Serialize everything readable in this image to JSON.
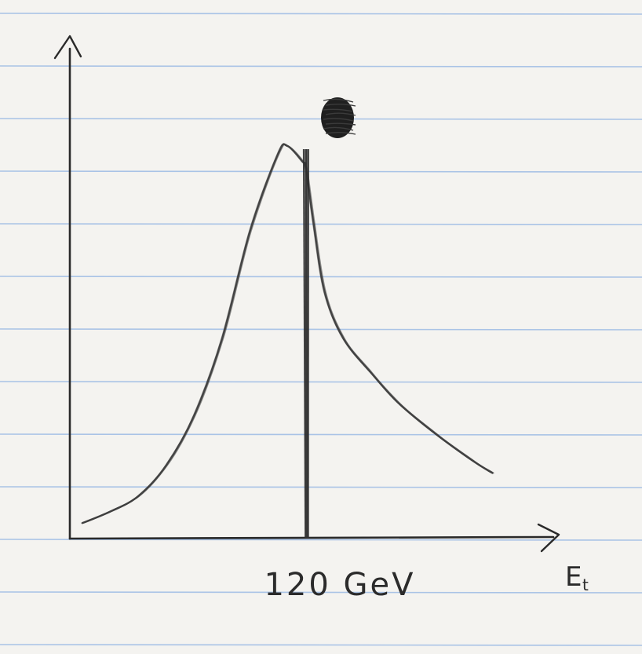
{
  "chart_data": {
    "type": "line",
    "title": "",
    "xlabel": "E_t",
    "xlabel_parts": {
      "main": "E",
      "sub": "t"
    },
    "ylabel": "",
    "marked_value_label": "120 GeV",
    "marked_value": 120,
    "grid": false,
    "legend": "none",
    "series": [
      {
        "name": "",
        "x": [
          0,
          15,
          30,
          45,
          60,
          75,
          90,
          105,
          110,
          118,
          120,
          124,
          130,
          140,
          155,
          170,
          190,
          210,
          220
        ],
        "y": [
          0.02,
          0.05,
          0.09,
          0.17,
          0.3,
          0.5,
          0.78,
          0.98,
          1.0,
          0.96,
          0.94,
          0.8,
          0.62,
          0.5,
          0.41,
          0.33,
          0.25,
          0.18,
          0.15
        ]
      }
    ],
    "annotations": [
      {
        "type": "vertical-line",
        "x": 120
      },
      {
        "type": "dot",
        "x": 127
      }
    ]
  },
  "colors": {
    "paper": "#f4f3f0",
    "rule_line": "#a9c3e6",
    "ink": "#2e2e2e",
    "pencil": "#3a3a3a"
  }
}
